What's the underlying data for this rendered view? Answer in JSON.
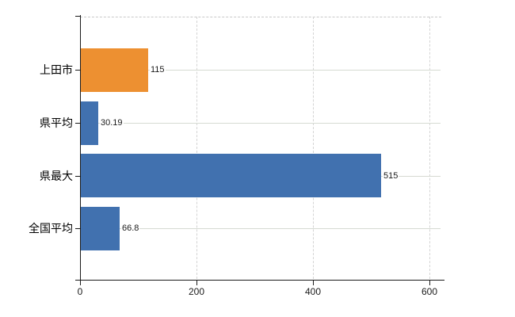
{
  "chart_data": {
    "type": "bar",
    "orientation": "horizontal",
    "categories": [
      "上田市",
      "県平均",
      "県最大",
      "全国平均"
    ],
    "values": [
      115,
      30.19,
      515,
      66.8
    ],
    "value_labels": [
      "115",
      "30.19",
      "515",
      "66.8"
    ],
    "bar_colors": [
      "#ED9031",
      "#4171AF",
      "#4171AF",
      "#4171AF"
    ],
    "xlim": [
      0,
      600
    ],
    "x_ticks": [
      0,
      200,
      400,
      600
    ],
    "x_tick_labels": [
      "0",
      "200",
      "400",
      "600"
    ],
    "grid": true,
    "legend": false,
    "colors": {
      "highlight_bar": "#ED9031",
      "default_bar": "#4171AF",
      "axis": "#1a1a1a",
      "horizontal_gridline": "#d6dad2",
      "dashed_gridline": "#d4d4d4",
      "text": "#1a1a1a",
      "background": "#ffffff"
    }
  }
}
